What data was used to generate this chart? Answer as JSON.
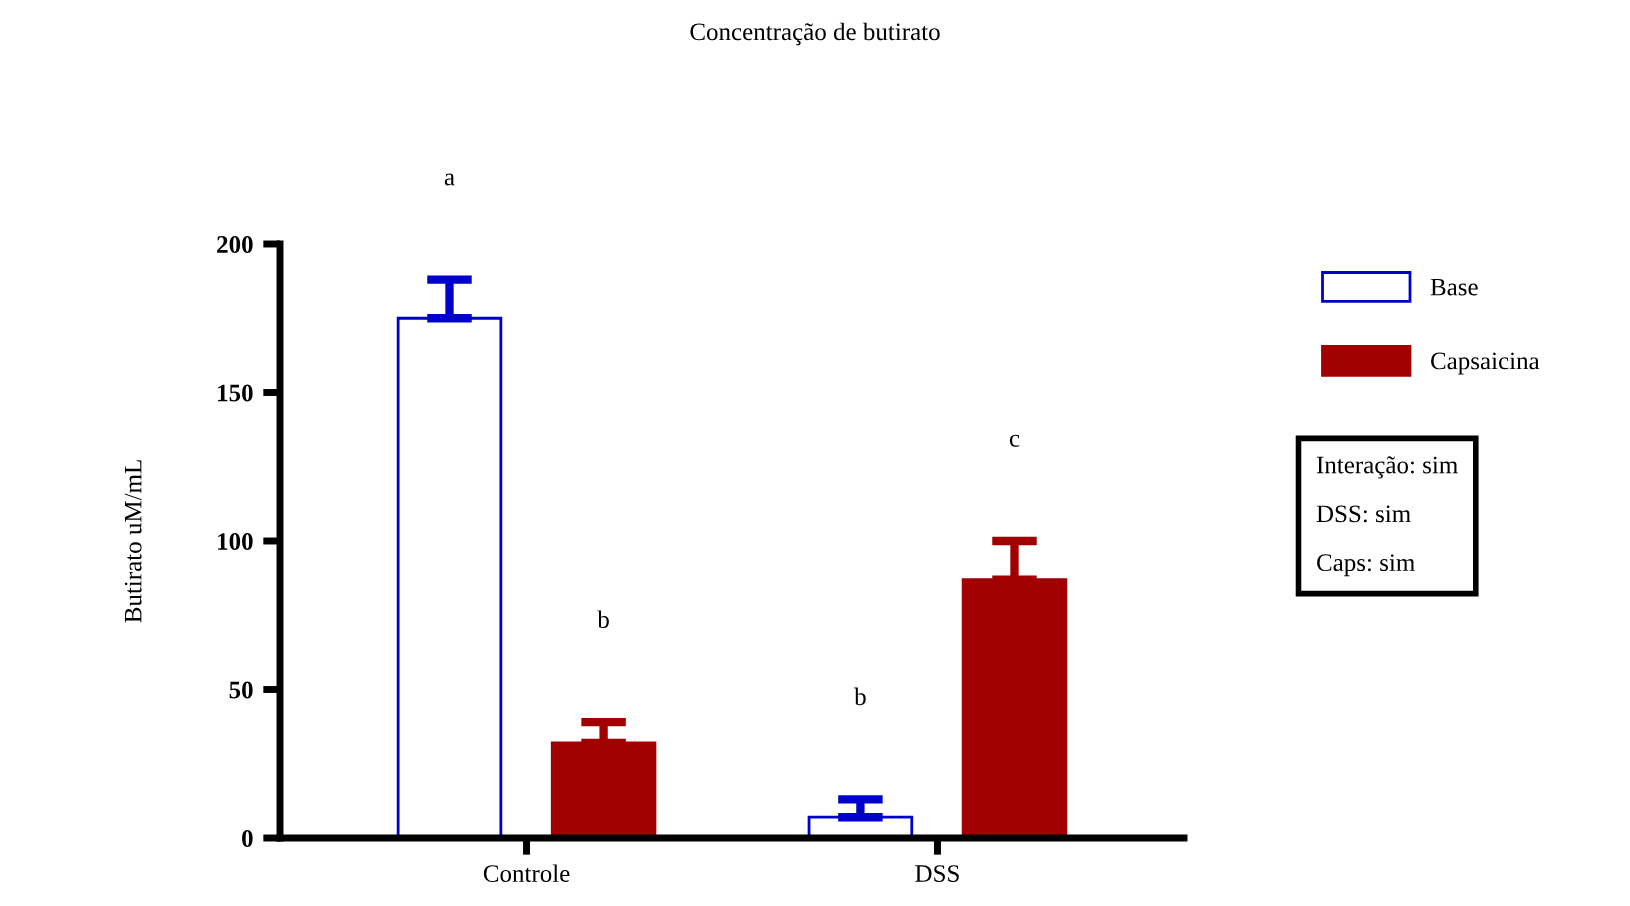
{
  "chart_data": {
    "type": "bar",
    "title": "Concentração de butirato",
    "ylabel": "Butirato uM/mL",
    "categories": [
      "Controle",
      "DSS"
    ],
    "series": [
      {
        "name": "Base",
        "color": "#0000cc",
        "values": [
          175,
          7
        ],
        "errors": [
          [
            175,
            188
          ],
          [
            7,
            13
          ]
        ]
      },
      {
        "name": "Capsaicina",
        "color": "#a00000",
        "values": [
          32,
          87
        ],
        "errors": [
          [
            32,
            39
          ],
          [
            87,
            100
          ]
        ]
      }
    ],
    "ylim": [
      0,
      200
    ],
    "yticks": [
      0,
      50,
      100,
      150,
      200
    ],
    "grid": false,
    "legend": "top right",
    "annotations": [
      "a",
      "b",
      "b",
      "c",
      "Interação: sim",
      "DSS: sim",
      "Caps: sim"
    ]
  }
}
